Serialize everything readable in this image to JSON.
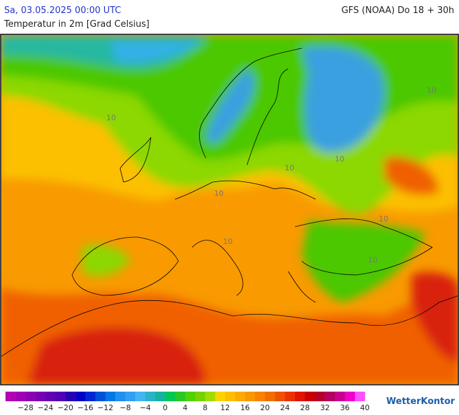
{
  "header": {
    "datetime": "Sa, 03.05.2025 00:00 UTC",
    "model": "GFS (NOAA) Do 18 + 30h",
    "subtitle": "Temperatur in 2m [Grad Celsius]"
  },
  "map": {
    "contour_labels": [
      "10",
      "10",
      "10",
      "10",
      "10",
      "10",
      "10",
      "10"
    ]
  },
  "colorbar": {
    "ticks": [
      "−28",
      "−24",
      "−20",
      "−16",
      "−12",
      "−8",
      "−4",
      "0",
      "4",
      "8",
      "12",
      "16",
      "20",
      "24",
      "28",
      "32",
      "36",
      "40"
    ]
  },
  "brand": "WetterKontor"
}
